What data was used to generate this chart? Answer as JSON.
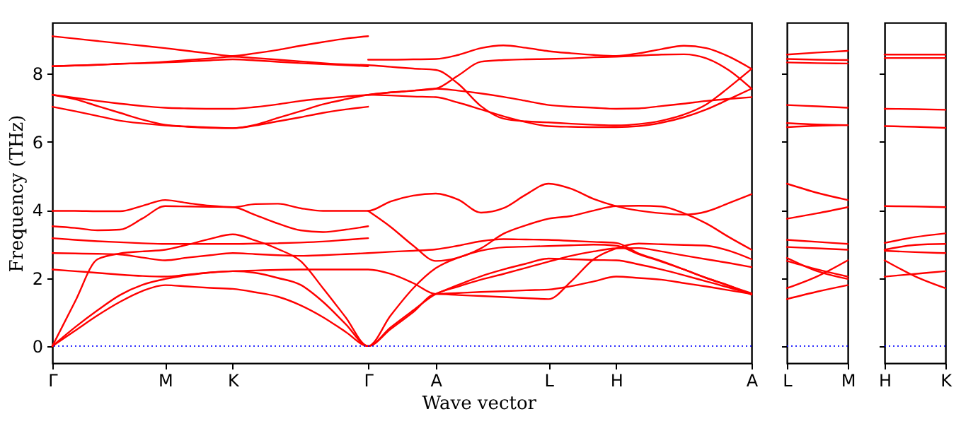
{
  "chart_data": [
    {
      "type": "line",
      "ylabel": "Frequency (THz)",
      "xlabel": "Wave vector",
      "ylim": [
        -0.5,
        9.5
      ],
      "yticks": [
        0,
        2,
        4,
        6,
        8
      ],
      "categories": [
        "Γ",
        null,
        null,
        null,
        null,
        "M",
        null,
        null,
        "K",
        null,
        null,
        null,
        null,
        null,
        "Γ",
        null,
        null,
        "A",
        null,
        null,
        null,
        null,
        "L",
        null,
        null,
        "H",
        null,
        null,
        null,
        null,
        null,
        "A"
      ],
      "ref_lines": [
        {
          "axis": "y",
          "value": 0,
          "color": "#0000ff",
          "line_style": "dotted"
        }
      ],
      "series": [
        {
          "color": "#ff0000",
          "values": [
            9.1,
            9.03,
            8.96,
            8.89,
            8.82,
            8.75,
            8.67,
            8.59,
            8.52,
            8.6,
            8.7,
            8.82,
            8.93,
            9.03,
            9.1,
            null,
            null,
            null,
            null,
            null,
            null,
            null,
            null,
            null,
            null,
            null,
            null,
            null,
            null,
            null,
            null,
            null
          ]
        },
        {
          "color": "#ff0000",
          "values": [
            8.22,
            8.24,
            8.26,
            8.29,
            8.31,
            8.33,
            8.36,
            8.39,
            8.42,
            8.39,
            8.35,
            8.31,
            8.28,
            8.25,
            8.22,
            null,
            null,
            null,
            null,
            null,
            null,
            null,
            null,
            null,
            null,
            null,
            null,
            null,
            null,
            null,
            null,
            null
          ]
        },
        {
          "color": "#ff0000",
          "values": [
            8.22,
            8.24,
            8.26,
            8.29,
            8.31,
            8.35,
            8.4,
            8.45,
            8.5,
            8.46,
            8.41,
            8.36,
            8.31,
            8.27,
            8.25,
            8.2,
            8.15,
            8.11,
            7.7,
            7.05,
            6.68,
            6.6,
            6.57,
            6.53,
            6.5,
            6.48,
            6.52,
            6.62,
            6.8,
            7.1,
            7.6,
            8.14
          ]
        },
        {
          "color": "#ff0000",
          "values": [
            null,
            null,
            null,
            null,
            null,
            null,
            null,
            null,
            null,
            null,
            null,
            null,
            null,
            null,
            8.41,
            8.41,
            8.42,
            8.43,
            8.55,
            8.75,
            8.83,
            8.76,
            8.66,
            8.6,
            8.55,
            8.52,
            8.6,
            8.72,
            8.82,
            8.75,
            8.5,
            8.14
          ]
        },
        {
          "color": "#ff0000",
          "values": [
            7.38,
            7.29,
            7.2,
            7.12,
            7.05,
            7.0,
            6.98,
            6.97,
            6.97,
            7.02,
            7.1,
            7.2,
            7.27,
            7.33,
            7.38,
            7.45,
            7.5,
            7.56,
            7.95,
            8.35,
            8.4,
            8.42,
            8.43,
            8.45,
            8.48,
            8.5,
            8.53,
            8.56,
            8.57,
            8.45,
            8.1,
            7.56
          ]
        },
        {
          "color": "#ff0000",
          "values": [
            7.38,
            7.25,
            7.05,
            6.85,
            6.65,
            6.5,
            6.45,
            6.42,
            6.4,
            6.5,
            6.7,
            6.9,
            7.1,
            7.25,
            7.38,
            7.45,
            7.5,
            7.56,
            7.5,
            7.42,
            7.32,
            7.2,
            7.08,
            7.03,
            7.0,
            6.97,
            6.98,
            7.05,
            7.12,
            7.2,
            7.26,
            7.31
          ]
        },
        {
          "color": "#ff0000",
          "values": [
            7.03,
            6.9,
            6.76,
            6.62,
            6.54,
            6.48,
            6.44,
            6.41,
            6.4,
            6.48,
            6.6,
            6.72,
            6.85,
            6.95,
            7.03,
            null,
            null,
            null,
            null,
            null,
            null,
            null,
            null,
            null,
            null,
            null,
            null,
            null,
            null,
            null,
            null,
            null
          ]
        },
        {
          "color": "#ff0000",
          "values": [
            null,
            null,
            null,
            null,
            null,
            null,
            null,
            null,
            null,
            null,
            null,
            null,
            null,
            null,
            7.38,
            7.36,
            7.33,
            7.31,
            7.15,
            6.95,
            6.75,
            6.58,
            6.46,
            6.44,
            6.43,
            6.43,
            6.46,
            6.56,
            6.72,
            6.95,
            7.25,
            7.56
          ]
        },
        {
          "color": "#ff0000",
          "values": [
            3.97,
            3.97,
            3.96,
            3.96,
            4.12,
            4.29,
            4.2,
            4.12,
            4.08,
            4.17,
            4.18,
            4.05,
            3.97,
            3.97,
            3.97,
            4.25,
            4.42,
            4.48,
            4.3,
            3.92,
            4.05,
            4.45,
            4.77,
            4.62,
            4.32,
            4.11,
            3.98,
            3.9,
            3.86,
            3.95,
            4.2,
            4.46
          ]
        },
        {
          "color": "#ff0000",
          "values": [
            3.52,
            3.47,
            3.4,
            3.42,
            3.75,
            4.11,
            4.1,
            4.09,
            4.08,
            3.85,
            3.6,
            3.4,
            3.35,
            3.42,
            3.52,
            null,
            null,
            null,
            null,
            null,
            null,
            null,
            null,
            null,
            null,
            null,
            null,
            null,
            null,
            null,
            null,
            null
          ]
        },
        {
          "color": "#ff0000",
          "values": [
            3.17,
            3.12,
            3.08,
            3.05,
            3.02,
            3.0,
            3.0,
            3.0,
            3.0,
            3.01,
            3.02,
            3.04,
            3.07,
            3.12,
            3.17,
            null,
            null,
            null,
            null,
            null,
            null,
            null,
            null,
            null,
            null,
            null,
            null,
            null,
            null,
            null,
            null,
            null
          ]
        },
        {
          "color": "#ff0000",
          "values": [
            null,
            null,
            null,
            null,
            null,
            null,
            null,
            null,
            null,
            null,
            null,
            null,
            null,
            null,
            3.97,
            3.5,
            2.95,
            2.5,
            2.6,
            2.87,
            3.3,
            3.55,
            3.74,
            3.82,
            3.98,
            4.11,
            4.12,
            4.1,
            3.9,
            3.6,
            3.2,
            2.83
          ]
        },
        {
          "color": "#ff0000",
          "values": [
            2.73,
            2.72,
            2.71,
            2.69,
            2.6,
            2.52,
            2.6,
            2.67,
            2.73,
            2.7,
            2.67,
            2.65,
            2.67,
            2.7,
            2.73,
            2.77,
            2.8,
            2.84,
            2.95,
            3.08,
            3.14,
            3.13,
            3.12,
            3.09,
            3.06,
            3.03,
            2.72,
            2.5,
            2.25,
            2.0,
            1.78,
            1.51
          ]
        },
        {
          "color": "#ff0000",
          "values": [
            2.25,
            2.2,
            2.15,
            2.1,
            2.06,
            2.04,
            2.1,
            2.16,
            2.2,
            2.22,
            2.24,
            2.25,
            2.25,
            2.25,
            2.25,
            2.12,
            1.85,
            1.53,
            1.56,
            1.59,
            1.61,
            1.64,
            1.66,
            1.76,
            1.9,
            2.04,
            2.0,
            1.95,
            1.85,
            1.75,
            1.64,
            1.53
          ]
        },
        {
          "color": "#ff0000",
          "values": [
            0,
            1.3,
            2.55,
            2.72,
            2.78,
            2.83,
            2.98,
            3.15,
            3.28,
            3.1,
            2.85,
            2.5,
            1.7,
            0.85,
            0,
            0.9,
            1.7,
            2.29,
            2.6,
            2.8,
            2.9,
            2.92,
            2.94,
            2.96,
            2.98,
            2.95,
            2.7,
            2.48,
            2.25,
            2.0,
            1.77,
            1.55
          ]
        },
        {
          "color": "#ff0000",
          "values": [
            0,
            0.55,
            1.05,
            1.5,
            1.8,
            1.97,
            2.08,
            2.16,
            2.2,
            2.15,
            2.0,
            1.8,
            1.3,
            0.65,
            0,
            0.55,
            1.05,
            1.53,
            1.75,
            1.95,
            2.12,
            2.3,
            2.48,
            2.65,
            2.78,
            2.87,
            2.88,
            2.78,
            2.66,
            2.55,
            2.44,
            2.32
          ]
        },
        {
          "color": "#ff0000",
          "values": [
            0,
            0.45,
            0.9,
            1.3,
            1.62,
            1.79,
            1.75,
            1.71,
            1.68,
            1.58,
            1.45,
            1.2,
            0.85,
            0.42,
            0,
            0.5,
            1.0,
            1.53,
            1.5,
            1.47,
            1.44,
            1.41,
            1.38,
            1.9,
            2.55,
            2.87,
            3.01,
            2.99,
            2.97,
            2.95,
            2.8,
            2.55
          ]
        },
        {
          "color": "#ff0000",
          "values": [
            null,
            null,
            null,
            null,
            null,
            null,
            null,
            null,
            null,
            null,
            null,
            null,
            null,
            null,
            null,
            null,
            null,
            1.53,
            1.8,
            2.05,
            2.25,
            2.42,
            2.57,
            2.55,
            2.53,
            2.52,
            2.4,
            2.25,
            2.08,
            1.9,
            1.72,
            1.53
          ]
        }
      ]
    },
    {
      "type": "line",
      "ylim": [
        -0.5,
        9.5
      ],
      "yticks": [
        0,
        2,
        4,
        6,
        8
      ],
      "tick_labels": "x",
      "categories": [
        "L",
        null,
        "M"
      ],
      "ref_lines": [
        {
          "axis": "y",
          "value": 0,
          "color": "#0000ff",
          "line_style": "dotted"
        }
      ],
      "series": [
        {
          "color": "#ff0000",
          "values": [
            8.56,
            8.62,
            8.67
          ]
        },
        {
          "color": "#ff0000",
          "values": [
            8.43,
            8.41,
            8.4
          ]
        },
        {
          "color": "#ff0000",
          "values": [
            8.33,
            8.31,
            8.3
          ]
        },
        {
          "color": "#ff0000",
          "values": [
            7.08,
            7.04,
            7.0
          ]
        },
        {
          "color": "#ff0000",
          "values": [
            6.55,
            6.51,
            6.49
          ]
        },
        {
          "color": "#ff0000",
          "values": [
            6.43,
            6.47,
            6.49
          ]
        },
        {
          "color": "#ff0000",
          "values": [
            4.77,
            4.5,
            4.29
          ]
        },
        {
          "color": "#ff0000",
          "values": [
            3.74,
            3.9,
            4.08
          ]
        },
        {
          "color": "#ff0000",
          "values": [
            3.12,
            3.06,
            3.0
          ]
        },
        {
          "color": "#ff0000",
          "values": [
            2.91,
            2.87,
            2.83
          ]
        },
        {
          "color": "#ff0000",
          "values": [
            2.59,
            2.2,
            1.97
          ]
        },
        {
          "color": "#ff0000",
          "values": [
            2.5,
            2.25,
            2.04
          ]
        },
        {
          "color": "#ff0000",
          "values": [
            1.7,
            2.05,
            2.52
          ]
        },
        {
          "color": "#ff0000",
          "values": [
            1.38,
            1.6,
            1.79
          ]
        }
      ]
    },
    {
      "type": "line",
      "ylim": [
        -0.5,
        9.5
      ],
      "yticks": [
        0,
        2,
        4,
        6,
        8
      ],
      "tick_labels": "x",
      "categories": [
        "H",
        null,
        "K"
      ],
      "ref_lines": [
        {
          "axis": "y",
          "value": 0,
          "color": "#0000ff",
          "line_style": "dotted"
        }
      ],
      "series": [
        {
          "color": "#ff0000",
          "values": [
            8.56,
            8.56,
            8.56
          ]
        },
        {
          "color": "#ff0000",
          "values": [
            8.46,
            8.46,
            8.46
          ]
        },
        {
          "color": "#ff0000",
          "values": [
            6.97,
            6.96,
            6.94
          ]
        },
        {
          "color": "#ff0000",
          "values": [
            6.46,
            6.44,
            6.41
          ]
        },
        {
          "color": "#ff0000",
          "values": [
            4.11,
            4.1,
            4.08
          ]
        },
        {
          "color": "#ff0000",
          "values": [
            3.03,
            3.2,
            3.31
          ]
        },
        {
          "color": "#ff0000",
          "values": [
            2.83,
            2.97,
            3.0
          ]
        },
        {
          "color": "#ff0000",
          "values": [
            2.8,
            2.76,
            2.73
          ]
        },
        {
          "color": "#ff0000",
          "values": [
            2.52,
            2.05,
            1.7
          ]
        },
        {
          "color": "#ff0000",
          "values": [
            2.04,
            2.12,
            2.2
          ]
        }
      ]
    }
  ]
}
